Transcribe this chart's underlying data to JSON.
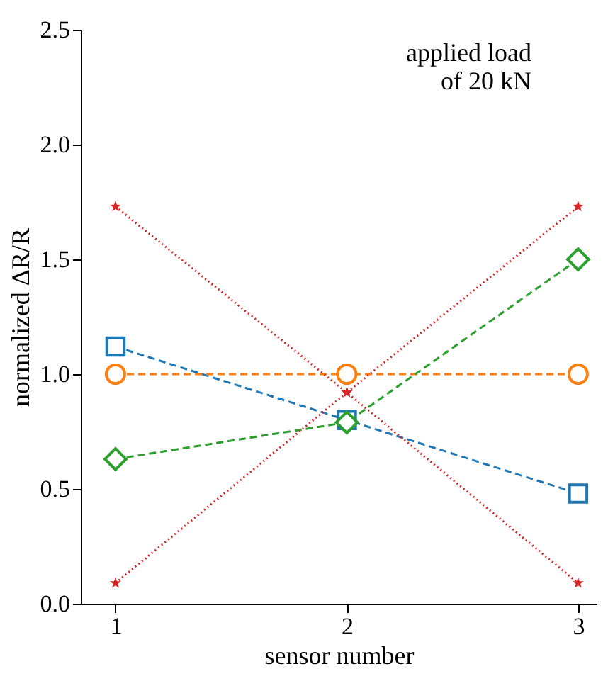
{
  "chart_data": {
    "type": "line",
    "xlabel": "sensor number",
    "ylabel": "normalized ΔR/R",
    "x": [
      1,
      2,
      3
    ],
    "xlim": [
      0.85,
      3.08
    ],
    "xticks": [
      1,
      2,
      3
    ],
    "ylim": [
      0,
      2.5
    ],
    "yticks": [
      {
        "value": 0,
        "label": "0.0"
      },
      0.5,
      {
        "value": 1,
        "label": "1.0"
      },
      1.5,
      {
        "value": 2,
        "label": "2.0"
      },
      2.5
    ],
    "grid": false,
    "annotations": [
      "applied load\nof 20 kN"
    ],
    "series": [
      {
        "color": "#1f77b4",
        "values": [
          1.12,
          0.8,
          0.48
        ],
        "marker": "square",
        "line_style": "dashed"
      },
      {
        "color": "#ff7f0e",
        "values": [
          1.0,
          1.0,
          1.0
        ],
        "marker": "circle",
        "line_style": "dashed"
      },
      {
        "color": "#2ca02c",
        "values": [
          0.63,
          0.79,
          1.5
        ],
        "marker": "diamond",
        "line_style": "dashed"
      },
      {
        "color": "#d62728",
        "values": [
          1.73,
          0.92,
          1.73
        ],
        "marker": "star",
        "line_style": "dotted"
      },
      {
        "color": "#d62728",
        "values": [
          0.09,
          0.92,
          0.09
        ],
        "marker": "star",
        "line_style": "dotted"
      }
    ]
  }
}
